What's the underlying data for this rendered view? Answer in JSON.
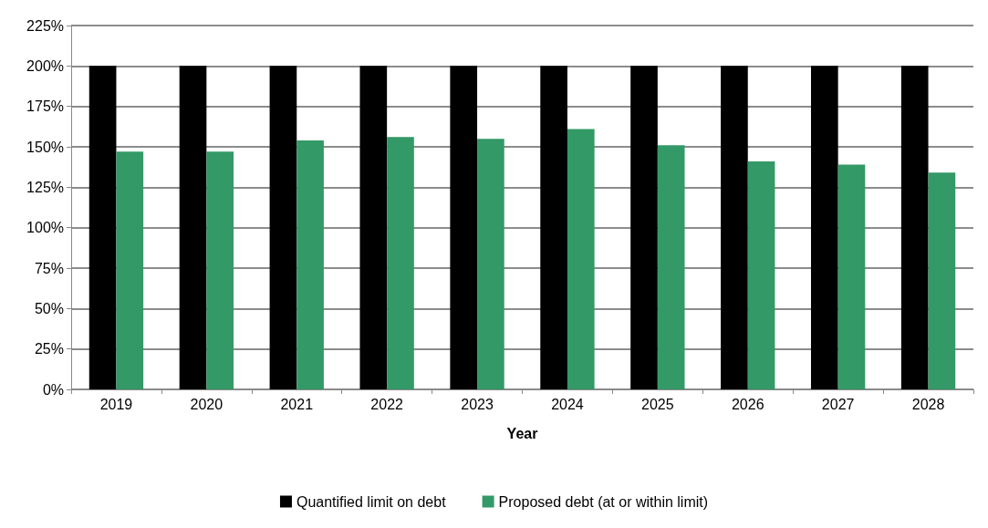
{
  "chart_data": {
    "type": "bar",
    "xlabel": "Year",
    "categories": [
      "2019",
      "2020",
      "2021",
      "2022",
      "2023",
      "2024",
      "2025",
      "2026",
      "2027",
      "2028"
    ],
    "series": [
      {
        "name": "Quantified limit on debt",
        "color": "#000000",
        "values": [
          200,
          200,
          200,
          200,
          200,
          200,
          200,
          200,
          200,
          200
        ]
      },
      {
        "name": "Proposed debt (at or within limit)",
        "color": "#339966",
        "values": [
          147,
          147,
          154,
          156,
          155,
          161,
          151,
          141,
          139,
          134
        ]
      }
    ],
    "ylim": [
      0,
      225
    ],
    "yticks": [
      {
        "value": 0,
        "label": "0%"
      },
      {
        "value": 25,
        "label": "25%"
      },
      {
        "value": 50,
        "label": "50%"
      },
      {
        "value": 75,
        "label": "75%"
      },
      {
        "value": 100,
        "label": "100%"
      },
      {
        "value": 125,
        "label": "125%"
      },
      {
        "value": 150,
        "label": "150%"
      },
      {
        "value": 175,
        "label": "175%"
      },
      {
        "value": 200,
        "label": "200%"
      },
      {
        "value": 225,
        "label": "225%"
      }
    ],
    "grid": "y",
    "legend": "bottom"
  }
}
